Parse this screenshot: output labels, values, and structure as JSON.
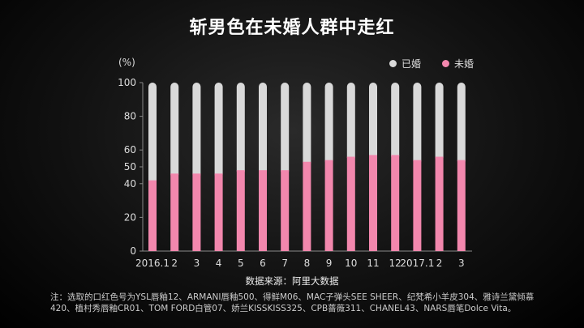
{
  "title": "斩男色在未婚人群中走红",
  "unit_label": "(%)",
  "legend": {
    "married": {
      "label": "已婚",
      "color": "#d9d9d9"
    },
    "unmarried": {
      "label": "未婚",
      "color": "#f287ad"
    }
  },
  "source": "数据来源：阿里大数据",
  "note": "注：选取的口红色号为YSL唇釉12、ARMANI唇釉500、得鲜M06、MAC子弹头SEE SHEER、纪梵希小羊皮304、雅诗兰黛倾慕420、植村秀唇釉CR01、TOM FORD白管07、娇兰KISSKISS325、CPB蔷薇311、CHANEL43、NARS唇笔Dolce Vita。",
  "chart_data": {
    "type": "bar",
    "stacked": true,
    "categories": [
      "2016.1",
      "2",
      "3",
      "4",
      "5",
      "6",
      "7",
      "8",
      "9",
      "10",
      "11",
      "12",
      "2017.1",
      "2",
      "3"
    ],
    "series": [
      {
        "name": "未婚",
        "values": [
          42,
          46,
          46,
          46,
          48,
          48,
          48,
          53,
          54,
          56,
          57,
          57,
          54,
          56,
          54
        ]
      },
      {
        "name": "已婚",
        "values": [
          58,
          54,
          54,
          54,
          52,
          52,
          52,
          47,
          46,
          44,
          43,
          43,
          46,
          44,
          46
        ]
      }
    ],
    "yticks": [
      0,
      20,
      40,
      50,
      60,
      80,
      100
    ],
    "ylim": [
      0,
      100
    ],
    "legend_position": "top-right"
  }
}
